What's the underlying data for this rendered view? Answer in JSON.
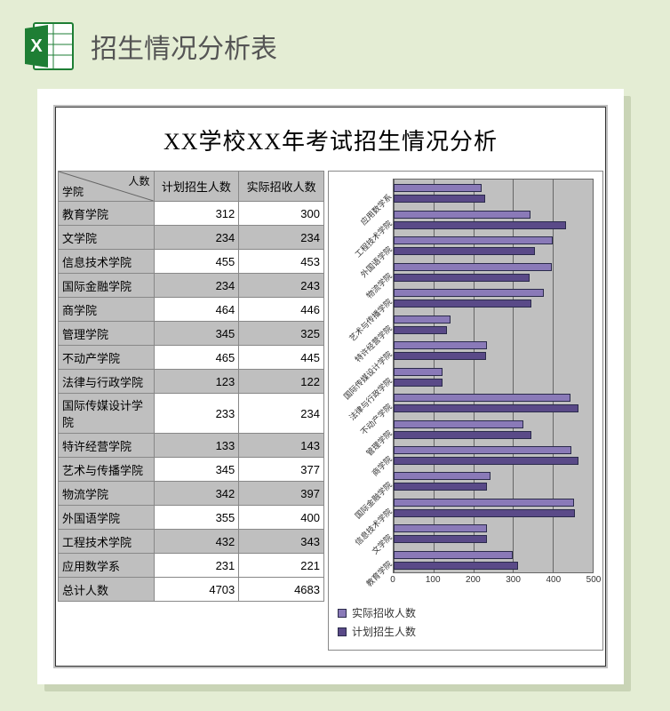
{
  "header": {
    "title": "招生情况分析表",
    "icon_name": "excel-icon"
  },
  "sheet": {
    "title": "XX学校XX年考试招生情况分析",
    "corner_top": "人数",
    "corner_bottom": "学院",
    "columns": [
      "计划招生人数",
      "实际招收人数"
    ],
    "total_label": "总计人数",
    "totals": [
      4703,
      4683
    ],
    "rows": [
      {
        "name": "教育学院",
        "planned": 312,
        "actual": 300
      },
      {
        "name": "文学院",
        "planned": 234,
        "actual": 234
      },
      {
        "name": "信息技术学院",
        "planned": 455,
        "actual": 453
      },
      {
        "name": "国际金融学院",
        "planned": 234,
        "actual": 243
      },
      {
        "name": "商学院",
        "planned": 464,
        "actual": 446
      },
      {
        "name": "管理学院",
        "planned": 345,
        "actual": 325
      },
      {
        "name": "不动产学院",
        "planned": 465,
        "actual": 445
      },
      {
        "name": "法律与行政学院",
        "planned": 123,
        "actual": 122
      },
      {
        "name": "国际传媒设计学院",
        "planned": 233,
        "actual": 234
      },
      {
        "name": "特许经营学院",
        "planned": 133,
        "actual": 143
      },
      {
        "name": "艺术与传播学院",
        "planned": 345,
        "actual": 377
      },
      {
        "name": "物流学院",
        "planned": 342,
        "actual": 397
      },
      {
        "name": "外国语学院",
        "planned": 355,
        "actual": 400
      },
      {
        "name": "工程技术学院",
        "planned": 432,
        "actual": 343
      },
      {
        "name": "应用数学系",
        "planned": 231,
        "actual": 221
      }
    ]
  },
  "chart": {
    "type": "bar-horizontal",
    "x_min": 0,
    "x_max": 500,
    "x_tick_step": 100,
    "x_ticks": [
      0,
      100,
      200,
      300,
      400,
      500
    ],
    "bar_color_actual": "#8a7ab8",
    "bar_color_planned": "#5a4a88",
    "bar_border": "#2a2a4a",
    "plot_bg": "#c0c0c0",
    "grid_color": "#666666",
    "legend": [
      {
        "label": "实际招收人数",
        "color": "#8a7ab8"
      },
      {
        "label": "计划招生人数",
        "color": "#5a4a88"
      }
    ],
    "categories_top_to_bottom": [
      "应用数学系",
      "工程技术学院",
      "外国语学院",
      "物流学院",
      "艺术与传播学院",
      "特许经营学院",
      "国际传媒设计学院",
      "法律与行政学院",
      "不动产学院",
      "管理学院",
      "商学院",
      "国际金融学院",
      "信息技术学院",
      "文学院",
      "教育学院"
    ]
  },
  "colors": {
    "page_bg": "#e4edd4",
    "shadow": "#c9d4b6",
    "gray_band": "#bfbfbf",
    "text": "#555555"
  }
}
